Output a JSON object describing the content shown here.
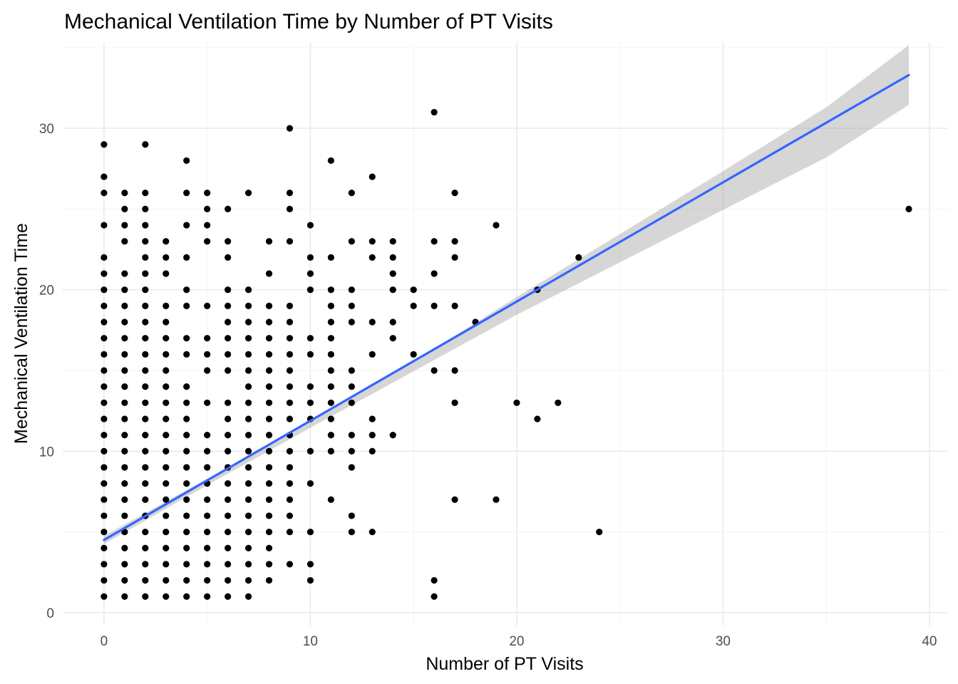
{
  "chart_data": {
    "type": "scatter",
    "title": "Mechanical Ventilation Time by Number of PT Visits",
    "xlabel": "Number of PT Visits",
    "ylabel": "Mechanical Ventilation Time",
    "xlim": [
      -2,
      40.9
    ],
    "ylim": [
      -0.8,
      35.3
    ],
    "x_ticks": [
      0,
      10,
      20,
      30,
      40
    ],
    "x_tick_labels": [
      "0",
      "10",
      "20",
      "30",
      "40"
    ],
    "y_ticks": [
      0,
      10,
      20,
      30
    ],
    "y_tick_labels": [
      "0",
      "10",
      "20",
      "30"
    ],
    "grid": true,
    "colors": {
      "points": "#000000",
      "trend_line": "#3366ff",
      "confidence_band": "#999999",
      "grid": "#ebebeb"
    },
    "points": [
      [
        0,
        1
      ],
      [
        0,
        2
      ],
      [
        0,
        3
      ],
      [
        0,
        4
      ],
      [
        0,
        5
      ],
      [
        0,
        6
      ],
      [
        0,
        7
      ],
      [
        0,
        8
      ],
      [
        0,
        9
      ],
      [
        0,
        10
      ],
      [
        0,
        11
      ],
      [
        0,
        12
      ],
      [
        0,
        13
      ],
      [
        0,
        14
      ],
      [
        0,
        15
      ],
      [
        0,
        16
      ],
      [
        0,
        17
      ],
      [
        0,
        18
      ],
      [
        0,
        19
      ],
      [
        0,
        20
      ],
      [
        0,
        21
      ],
      [
        0,
        22
      ],
      [
        0,
        24
      ],
      [
        0,
        26
      ],
      [
        0,
        27
      ],
      [
        0,
        29
      ],
      [
        1,
        1
      ],
      [
        1,
        2
      ],
      [
        1,
        3
      ],
      [
        1,
        4
      ],
      [
        1,
        5
      ],
      [
        1,
        6
      ],
      [
        1,
        7
      ],
      [
        1,
        8
      ],
      [
        1,
        9
      ],
      [
        1,
        10
      ],
      [
        1,
        11
      ],
      [
        1,
        12
      ],
      [
        1,
        13
      ],
      [
        1,
        14
      ],
      [
        1,
        15
      ],
      [
        1,
        16
      ],
      [
        1,
        17
      ],
      [
        1,
        18
      ],
      [
        1,
        19
      ],
      [
        1,
        20
      ],
      [
        1,
        21
      ],
      [
        1,
        23
      ],
      [
        1,
        24
      ],
      [
        1,
        25
      ],
      [
        1,
        26
      ],
      [
        2,
        1
      ],
      [
        2,
        2
      ],
      [
        2,
        3
      ],
      [
        2,
        4
      ],
      [
        2,
        5
      ],
      [
        2,
        6
      ],
      [
        2,
        7
      ],
      [
        2,
        8
      ],
      [
        2,
        9
      ],
      [
        2,
        10
      ],
      [
        2,
        11
      ],
      [
        2,
        12
      ],
      [
        2,
        13
      ],
      [
        2,
        14
      ],
      [
        2,
        15
      ],
      [
        2,
        16
      ],
      [
        2,
        17
      ],
      [
        2,
        18
      ],
      [
        2,
        19
      ],
      [
        2,
        20
      ],
      [
        2,
        21
      ],
      [
        2,
        22
      ],
      [
        2,
        23
      ],
      [
        2,
        24
      ],
      [
        2,
        25
      ],
      [
        2,
        26
      ],
      [
        2,
        29
      ],
      [
        3,
        1
      ],
      [
        3,
        2
      ],
      [
        3,
        3
      ],
      [
        3,
        4
      ],
      [
        3,
        5
      ],
      [
        3,
        6
      ],
      [
        3,
        7
      ],
      [
        3,
        8
      ],
      [
        3,
        9
      ],
      [
        3,
        10
      ],
      [
        3,
        11
      ],
      [
        3,
        12
      ],
      [
        3,
        13
      ],
      [
        3,
        14
      ],
      [
        3,
        15
      ],
      [
        3,
        16
      ],
      [
        3,
        17
      ],
      [
        3,
        18
      ],
      [
        3,
        19
      ],
      [
        3,
        21
      ],
      [
        3,
        22
      ],
      [
        3,
        23
      ],
      [
        4,
        1
      ],
      [
        4,
        2
      ],
      [
        4,
        3
      ],
      [
        4,
        4
      ],
      [
        4,
        5
      ],
      [
        4,
        6
      ],
      [
        4,
        7
      ],
      [
        4,
        8
      ],
      [
        4,
        9
      ],
      [
        4,
        10
      ],
      [
        4,
        11
      ],
      [
        4,
        12
      ],
      [
        4,
        13
      ],
      [
        4,
        14
      ],
      [
        4,
        16
      ],
      [
        4,
        17
      ],
      [
        4,
        19
      ],
      [
        4,
        20
      ],
      [
        4,
        22
      ],
      [
        4,
        24
      ],
      [
        4,
        26
      ],
      [
        4,
        28
      ],
      [
        5,
        1
      ],
      [
        5,
        2
      ],
      [
        5,
        3
      ],
      [
        5,
        4
      ],
      [
        5,
        5
      ],
      [
        5,
        6
      ],
      [
        5,
        7
      ],
      [
        5,
        8
      ],
      [
        5,
        9
      ],
      [
        5,
        10
      ],
      [
        5,
        11
      ],
      [
        5,
        13
      ],
      [
        5,
        15
      ],
      [
        5,
        16
      ],
      [
        5,
        17
      ],
      [
        5,
        19
      ],
      [
        5,
        23
      ],
      [
        5,
        24
      ],
      [
        5,
        25
      ],
      [
        5,
        26
      ],
      [
        6,
        1
      ],
      [
        6,
        2
      ],
      [
        6,
        3
      ],
      [
        6,
        4
      ],
      [
        6,
        5
      ],
      [
        6,
        6
      ],
      [
        6,
        7
      ],
      [
        6,
        8
      ],
      [
        6,
        9
      ],
      [
        6,
        10
      ],
      [
        6,
        11
      ],
      [
        6,
        12
      ],
      [
        6,
        13
      ],
      [
        6,
        15
      ],
      [
        6,
        16
      ],
      [
        6,
        17
      ],
      [
        6,
        18
      ],
      [
        6,
        19
      ],
      [
        6,
        20
      ],
      [
        6,
        22
      ],
      [
        6,
        23
      ],
      [
        6,
        25
      ],
      [
        7,
        1
      ],
      [
        7,
        2
      ],
      [
        7,
        3
      ],
      [
        7,
        4
      ],
      [
        7,
        5
      ],
      [
        7,
        6
      ],
      [
        7,
        7
      ],
      [
        7,
        8
      ],
      [
        7,
        9
      ],
      [
        7,
        10
      ],
      [
        7,
        11
      ],
      [
        7,
        12
      ],
      [
        7,
        13
      ],
      [
        7,
        14
      ],
      [
        7,
        15
      ],
      [
        7,
        16
      ],
      [
        7,
        17
      ],
      [
        7,
        18
      ],
      [
        7,
        19
      ],
      [
        7,
        20
      ],
      [
        7,
        26
      ],
      [
        8,
        2
      ],
      [
        8,
        3
      ],
      [
        8,
        4
      ],
      [
        8,
        5
      ],
      [
        8,
        6
      ],
      [
        8,
        7
      ],
      [
        8,
        8
      ],
      [
        8,
        9
      ],
      [
        8,
        10
      ],
      [
        8,
        11
      ],
      [
        8,
        12
      ],
      [
        8,
        13
      ],
      [
        8,
        14
      ],
      [
        8,
        15
      ],
      [
        8,
        16
      ],
      [
        8,
        17
      ],
      [
        8,
        18
      ],
      [
        8,
        19
      ],
      [
        8,
        21
      ],
      [
        8,
        23
      ],
      [
        9,
        3
      ],
      [
        9,
        5
      ],
      [
        9,
        6
      ],
      [
        9,
        7
      ],
      [
        9,
        8
      ],
      [
        9,
        9
      ],
      [
        9,
        10
      ],
      [
        9,
        11
      ],
      [
        9,
        12
      ],
      [
        9,
        13
      ],
      [
        9,
        14
      ],
      [
        9,
        15
      ],
      [
        9,
        16
      ],
      [
        9,
        17
      ],
      [
        9,
        18
      ],
      [
        9,
        19
      ],
      [
        9,
        23
      ],
      [
        9,
        25
      ],
      [
        9,
        26
      ],
      [
        9,
        30
      ],
      [
        10,
        2
      ],
      [
        10,
        3
      ],
      [
        10,
        5
      ],
      [
        10,
        8
      ],
      [
        10,
        10
      ],
      [
        10,
        12
      ],
      [
        10,
        13
      ],
      [
        10,
        14
      ],
      [
        10,
        16
      ],
      [
        10,
        17
      ],
      [
        10,
        20
      ],
      [
        10,
        21
      ],
      [
        10,
        22
      ],
      [
        10,
        24
      ],
      [
        11,
        7
      ],
      [
        11,
        10
      ],
      [
        11,
        11
      ],
      [
        11,
        12
      ],
      [
        11,
        13
      ],
      [
        11,
        14
      ],
      [
        11,
        15
      ],
      [
        11,
        16
      ],
      [
        11,
        17
      ],
      [
        11,
        18
      ],
      [
        11,
        19
      ],
      [
        11,
        20
      ],
      [
        11,
        22
      ],
      [
        11,
        28
      ],
      [
        12,
        5
      ],
      [
        12,
        6
      ],
      [
        12,
        9
      ],
      [
        12,
        10
      ],
      [
        12,
        11
      ],
      [
        12,
        13
      ],
      [
        12,
        14
      ],
      [
        12,
        15
      ],
      [
        12,
        18
      ],
      [
        12,
        19
      ],
      [
        12,
        20
      ],
      [
        12,
        23
      ],
      [
        12,
        26
      ],
      [
        13,
        5
      ],
      [
        13,
        10
      ],
      [
        13,
        11
      ],
      [
        13,
        12
      ],
      [
        13,
        16
      ],
      [
        13,
        18
      ],
      [
        13,
        22
      ],
      [
        13,
        23
      ],
      [
        13,
        27
      ],
      [
        14,
        11
      ],
      [
        14,
        17
      ],
      [
        14,
        18
      ],
      [
        14,
        20
      ],
      [
        14,
        21
      ],
      [
        14,
        22
      ],
      [
        14,
        23
      ],
      [
        15,
        16
      ],
      [
        15,
        19
      ],
      [
        15,
        20
      ],
      [
        16,
        1
      ],
      [
        16,
        2
      ],
      [
        16,
        15
      ],
      [
        16,
        19
      ],
      [
        16,
        21
      ],
      [
        16,
        23
      ],
      [
        16,
        31
      ],
      [
        17,
        7
      ],
      [
        17,
        13
      ],
      [
        17,
        15
      ],
      [
        17,
        19
      ],
      [
        17,
        22
      ],
      [
        17,
        23
      ],
      [
        17,
        26
      ],
      [
        18,
        18
      ],
      [
        19,
        7
      ],
      [
        19,
        24
      ],
      [
        20,
        13
      ],
      [
        21,
        12
      ],
      [
        21,
        20
      ],
      [
        22,
        13
      ],
      [
        23,
        22
      ],
      [
        24,
        5
      ],
      [
        39,
        25
      ]
    ],
    "trend_line": [
      [
        0,
        4.5
      ],
      [
        39,
        33.3
      ]
    ],
    "confidence_band": {
      "x": [
        0,
        5,
        10,
        13,
        16,
        20,
        25,
        30,
        35,
        39
      ],
      "lower": [
        4.25,
        7.9,
        11.45,
        13.55,
        15.65,
        18.45,
        21.7,
        24.95,
        28.2,
        31.45
      ],
      "upper": [
        4.75,
        8.3,
        11.85,
        14.05,
        16.35,
        19.55,
        23.45,
        27.35,
        31.3,
        35.15
      ]
    }
  }
}
